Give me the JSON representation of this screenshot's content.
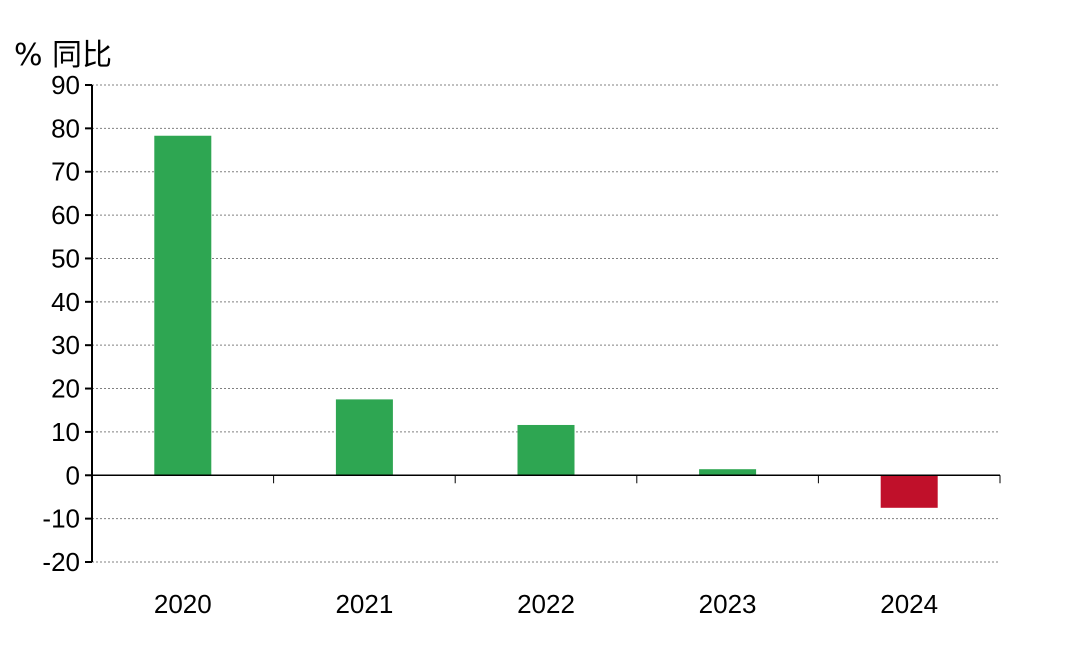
{
  "chart_data": {
    "type": "bar",
    "ylabel": "% 同比",
    "xlabel": "",
    "categories": [
      "2020",
      "2021",
      "2022",
      "2023",
      "2024"
    ],
    "values": [
      78.3,
      17.5,
      11.6,
      1.4,
      -7.5
    ],
    "ylim": [
      -20,
      90
    ],
    "yticks": [
      90,
      80,
      70,
      60,
      50,
      40,
      30,
      20,
      10,
      0,
      -10,
      -20
    ],
    "grid": true,
    "legend": "none",
    "colors": {
      "positive": "#2ea652",
      "negative": "#c0102a",
      "grid": "#808080",
      "axis": "#000000"
    }
  }
}
